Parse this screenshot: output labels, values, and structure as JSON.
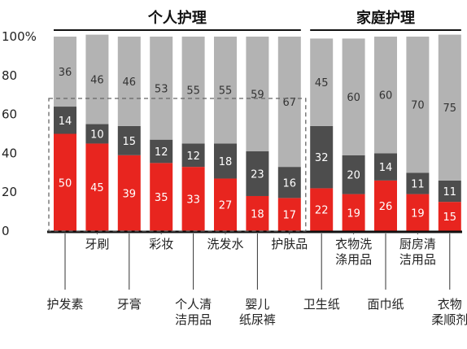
{
  "chart_data": {
    "type": "bar",
    "stacked": true,
    "title": "",
    "xlabel": "",
    "ylabel": "",
    "ylim": [
      0,
      100
    ],
    "yticks": [
      "0",
      "20",
      "40",
      "60",
      "80",
      "100%"
    ],
    "group_labels": [
      "个人护理",
      "家庭护理"
    ],
    "categories": [
      "护发素",
      "牙刷",
      "牙膏",
      "彩妆",
      "个人清洁用品",
      "洗发水",
      "婴儿纸尿裤",
      "护肤品",
      "卫生纸",
      "衣物洗涤用品",
      "面巾纸",
      "厨房清洁用品",
      "衣物柔顺剂"
    ],
    "category_label_lines": [
      [
        "护发素"
      ],
      [
        "牙刷"
      ],
      [
        "牙膏"
      ],
      [
        "彩妆"
      ],
      [
        "个人清",
        "洁用品"
      ],
      [
        "洗发水"
      ],
      [
        "婴儿",
        "纸尿裤"
      ],
      [
        "护肤品"
      ],
      [
        "卫生纸"
      ],
      [
        "衣物洗",
        "涤用品"
      ],
      [
        "面巾纸"
      ],
      [
        "厨房清",
        "洁用品"
      ],
      [
        "衣物",
        "柔顺剂"
      ]
    ],
    "series": [
      {
        "color": "#e8251f",
        "label_color": "#ffffff",
        "values": [
          50,
          45,
          39,
          35,
          33,
          27,
          18,
          17,
          22,
          19,
          26,
          19,
          15
        ]
      },
      {
        "color": "#4d4d4d",
        "label_color": "#ffffff",
        "values": [
          14,
          10,
          15,
          12,
          12,
          18,
          23,
          16,
          32,
          20,
          14,
          11,
          11
        ]
      },
      {
        "color": "#b3b3b3",
        "label_color": "#333333",
        "values": [
          36,
          46,
          46,
          53,
          55,
          55,
          59,
          67,
          45,
          60,
          60,
          70,
          75
        ]
      }
    ],
    "grid": false,
    "legend": "none"
  }
}
